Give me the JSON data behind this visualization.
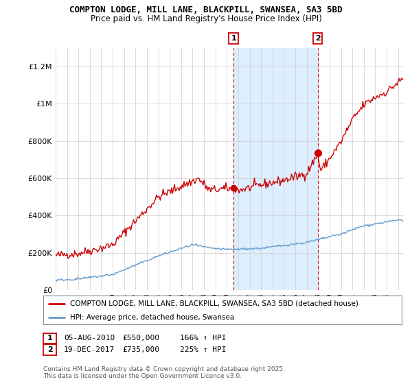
{
  "title1": "COMPTON LODGE, MILL LANE, BLACKPILL, SWANSEA, SA3 5BD",
  "title2": "Price paid vs. HM Land Registry's House Price Index (HPI)",
  "sale1_date_num": 2010.59,
  "sale1_price": 550000,
  "sale1_label": "1",
  "sale1_text": "05-AUG-2010",
  "sale1_pct": "166% ↑ HPI",
  "sale2_date_num": 2017.97,
  "sale2_price": 735000,
  "sale2_label": "2",
  "sale2_text": "19-DEC-2017",
  "sale2_pct": "225% ↑ HPI",
  "legend_line1": "COMPTON LODGE, MILL LANE, BLACKPILL, SWANSEA, SA3 5BD (detached house)",
  "legend_line2": "HPI: Average price, detached house, Swansea",
  "footer": "Contains HM Land Registry data © Crown copyright and database right 2025.\nThis data is licensed under the Open Government Licence v3.0.",
  "property_color": "#cc0000",
  "hpi_color": "#6699cc",
  "shade_color": "#ddeeff",
  "ylim": [
    0,
    1300000
  ],
  "yticks": [
    0,
    200000,
    400000,
    600000,
    800000,
    1000000,
    1200000
  ],
  "ytick_labels": [
    "£0",
    "£200K",
    "£400K",
    "£600K",
    "£800K",
    "£1M",
    "£1.2M"
  ],
  "xlim": [
    1995.0,
    2025.5
  ],
  "background_color": "#ffffff"
}
